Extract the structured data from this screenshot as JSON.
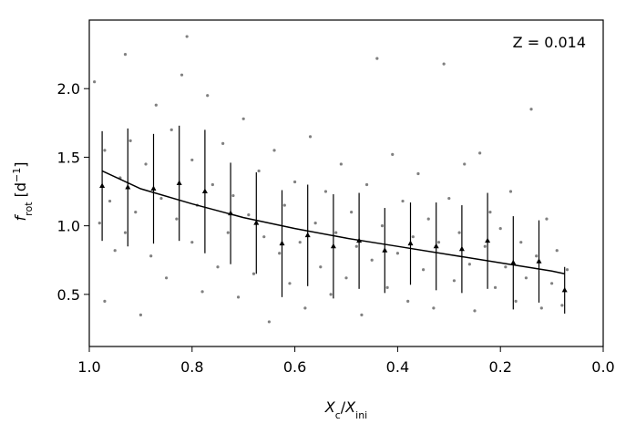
{
  "chart_data": {
    "type": "scatter",
    "annotation": "Z = 0.014",
    "xlabel": [
      {
        "text": "X",
        "kind": "italic"
      },
      {
        "text": "c",
        "kind": "sub"
      },
      {
        "text": "/",
        "kind": "normal"
      },
      {
        "text": "X",
        "kind": "italic"
      },
      {
        "text": "ini",
        "kind": "sub"
      }
    ],
    "ylabel": [
      {
        "text": "f",
        "kind": "italic"
      },
      {
        "text": "rot",
        "kind": "sub"
      },
      {
        "text": " [d",
        "kind": "normal"
      },
      {
        "text": "−1",
        "kind": "sup"
      },
      {
        "text": "]",
        "kind": "normal"
      }
    ],
    "xlim": [
      1.0,
      0.0
    ],
    "ylim": [
      0.12,
      2.5
    ],
    "xticks": [
      {
        "value": 1.0,
        "label": "1.0"
      },
      0.8,
      0.6,
      0.4,
      0.2,
      {
        "value": 0.0,
        "label": "0.0"
      }
    ],
    "yticks": [
      0.5,
      {
        "value": 1.0,
        "label": "1.0"
      },
      1.5,
      {
        "value": 2.0,
        "label": "2.0"
      }
    ],
    "series": [
      {
        "type": "scatter",
        "color": "#808080",
        "x": [
          0.99,
          0.98,
          0.97,
          0.97,
          0.96,
          0.95,
          0.94,
          0.93,
          0.93,
          0.92,
          0.91,
          0.9,
          0.89,
          0.88,
          0.87,
          0.86,
          0.85,
          0.84,
          0.83,
          0.82,
          0.81,
          0.8,
          0.8,
          0.79,
          0.78,
          0.77,
          0.76,
          0.75,
          0.74,
          0.73,
          0.72,
          0.71,
          0.7,
          0.69,
          0.68,
          0.67,
          0.66,
          0.65,
          0.64,
          0.63,
          0.62,
          0.61,
          0.6,
          0.59,
          0.58,
          0.57,
          0.56,
          0.55,
          0.54,
          0.53,
          0.52,
          0.51,
          0.5,
          0.49,
          0.48,
          0.47,
          0.46,
          0.45,
          0.44,
          0.43,
          0.42,
          0.41,
          0.4,
          0.39,
          0.38,
          0.37,
          0.36,
          0.35,
          0.34,
          0.33,
          0.32,
          0.31,
          0.3,
          0.29,
          0.28,
          0.27,
          0.26,
          0.25,
          0.24,
          0.23,
          0.22,
          0.21,
          0.2,
          0.19,
          0.18,
          0.17,
          0.16,
          0.15,
          0.14,
          0.13,
          0.12,
          0.11,
          0.1,
          0.09,
          0.08,
          0.07
        ],
        "values": [
          2.05,
          1.02,
          0.45,
          1.55,
          1.18,
          0.82,
          1.35,
          2.25,
          0.95,
          1.62,
          1.1,
          0.35,
          1.45,
          0.78,
          1.88,
          1.2,
          0.62,
          1.7,
          1.05,
          2.1,
          2.38,
          0.88,
          1.48,
          1.15,
          0.52,
          1.95,
          1.3,
          0.7,
          1.6,
          0.95,
          1.22,
          0.48,
          1.78,
          1.08,
          0.65,
          1.4,
          0.92,
          0.3,
          1.55,
          0.8,
          1.15,
          0.58,
          1.32,
          0.88,
          0.4,
          1.65,
          1.02,
          0.7,
          1.25,
          0.5,
          0.95,
          1.45,
          0.62,
          1.1,
          0.85,
          0.35,
          1.3,
          0.75,
          2.22,
          1.0,
          0.55,
          1.52,
          0.8,
          1.18,
          0.45,
          0.92,
          1.38,
          0.68,
          1.05,
          0.4,
          0.88,
          2.18,
          1.2,
          0.6,
          0.95,
          1.45,
          0.72,
          0.38,
          1.53,
          0.85,
          1.1,
          0.55,
          0.98,
          0.7,
          1.25,
          0.45,
          0.88,
          0.62,
          1.85,
          0.78,
          0.4,
          1.05,
          0.58,
          0.82,
          0.42,
          0.68
        ]
      },
      {
        "type": "errorbar",
        "color": "#000000",
        "x": [
          0.975,
          0.925,
          0.875,
          0.825,
          0.775,
          0.725,
          0.675,
          0.625,
          0.575,
          0.525,
          0.475,
          0.425,
          0.375,
          0.325,
          0.275,
          0.225,
          0.175,
          0.125,
          0.075
        ],
        "values": [
          1.29,
          1.28,
          1.27,
          1.31,
          1.25,
          1.09,
          1.02,
          0.87,
          0.93,
          0.85,
          0.89,
          0.82,
          0.87,
          0.85,
          0.83,
          0.89,
          0.73,
          0.74,
          0.53
        ],
        "errors": [
          0.4,
          0.43,
          0.4,
          0.42,
          0.45,
          0.37,
          0.37,
          0.39,
          0.37,
          0.38,
          0.35,
          0.31,
          0.3,
          0.32,
          0.32,
          0.35,
          0.34,
          0.3,
          0.17
        ]
      },
      {
        "type": "line",
        "color": "#000000",
        "x": [
          0.975,
          0.9,
          0.8,
          0.7,
          0.6,
          0.5,
          0.4,
          0.3,
          0.2,
          0.1,
          0.075
        ],
        "values": [
          1.4,
          1.27,
          1.16,
          1.06,
          0.98,
          0.91,
          0.85,
          0.79,
          0.73,
          0.67,
          0.65
        ]
      }
    ]
  }
}
